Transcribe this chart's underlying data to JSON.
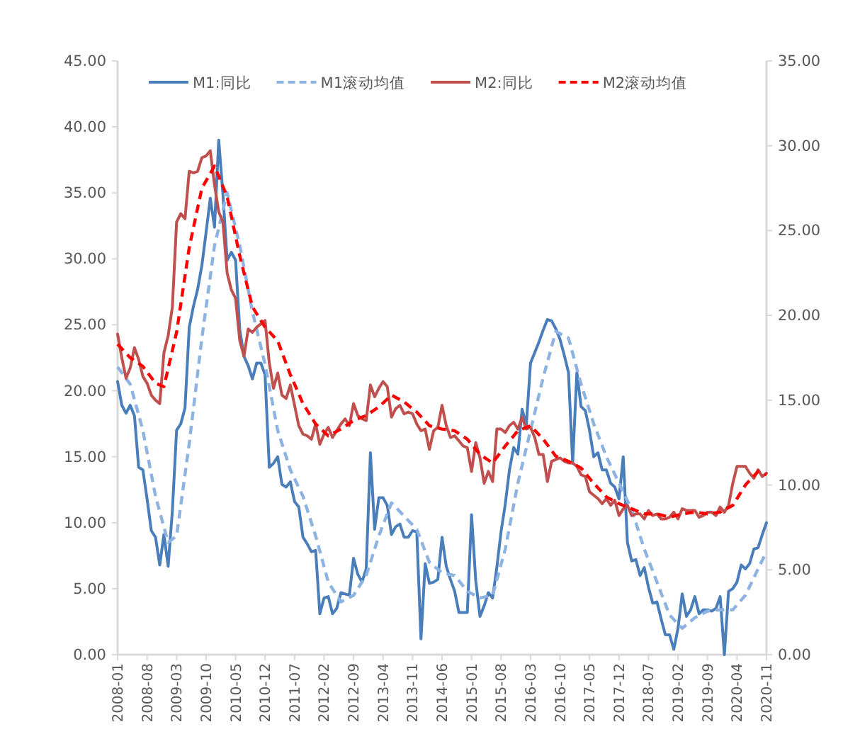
{
  "chart_data": {
    "type": "line",
    "x": [
      "2008-01",
      "2008-02",
      "2008-03",
      "2008-04",
      "2008-05",
      "2008-06",
      "2008-07",
      "2008-08",
      "2008-09",
      "2008-10",
      "2008-11",
      "2008-12",
      "2009-01",
      "2009-02",
      "2009-03",
      "2009-04",
      "2009-05",
      "2009-06",
      "2009-07",
      "2009-08",
      "2009-09",
      "2009-10",
      "2009-11",
      "2009-12",
      "2010-01",
      "2010-02",
      "2010-03",
      "2010-04",
      "2010-05",
      "2010-06",
      "2010-07",
      "2010-08",
      "2010-09",
      "2010-10",
      "2010-11",
      "2010-12",
      "2011-01",
      "2011-02",
      "2011-03",
      "2011-04",
      "2011-05",
      "2011-06",
      "2011-07",
      "2011-08",
      "2011-09",
      "2011-10",
      "2011-11",
      "2011-12",
      "2012-01",
      "2012-02",
      "2012-03",
      "2012-04",
      "2012-05",
      "2012-06",
      "2012-07",
      "2012-08",
      "2012-09",
      "2012-10",
      "2012-11",
      "2012-12",
      "2013-01",
      "2013-02",
      "2013-03",
      "2013-04",
      "2013-05",
      "2013-06",
      "2013-07",
      "2013-08",
      "2013-09",
      "2013-10",
      "2013-11",
      "2013-12",
      "2014-01",
      "2014-02",
      "2014-03",
      "2014-04",
      "2014-05",
      "2014-06",
      "2014-07",
      "2014-08",
      "2014-09",
      "2014-10",
      "2014-11",
      "2014-12",
      "2015-01",
      "2015-02",
      "2015-03",
      "2015-04",
      "2015-05",
      "2015-06",
      "2015-07",
      "2015-08",
      "2015-09",
      "2015-10",
      "2015-11",
      "2015-12",
      "2016-01",
      "2016-02",
      "2016-03",
      "2016-04",
      "2016-05",
      "2016-06",
      "2016-07",
      "2016-08",
      "2016-09",
      "2016-10",
      "2016-11",
      "2016-12",
      "2017-01",
      "2017-02",
      "2017-03",
      "2017-04",
      "2017-05",
      "2017-06",
      "2017-07",
      "2017-08",
      "2017-09",
      "2017-10",
      "2017-11",
      "2017-12",
      "2018-01",
      "2018-02",
      "2018-03",
      "2018-04",
      "2018-05",
      "2018-06",
      "2018-07",
      "2018-08",
      "2018-09",
      "2018-10",
      "2018-11",
      "2018-12",
      "2019-01",
      "2019-02",
      "2019-03",
      "2019-04",
      "2019-05",
      "2019-06",
      "2019-07",
      "2019-08",
      "2019-09",
      "2019-10",
      "2019-11",
      "2019-12",
      "2020-01",
      "2020-02",
      "2020-03",
      "2020-04",
      "2020-05",
      "2020-06",
      "2020-07",
      "2020-08",
      "2020-09",
      "2020-10",
      "2020-11"
    ],
    "xlim": [
      "2008-01",
      "2020-11"
    ],
    "xticks": [
      "2008-01",
      "2008-08",
      "2009-03",
      "2009-10",
      "2010-05",
      "2010-12",
      "2011-07",
      "2012-02",
      "2012-09",
      "2013-04",
      "2013-11",
      "2014-06",
      "2015-01",
      "2015-08",
      "2016-03",
      "2016-10",
      "2017-05",
      "2017-12",
      "2018-07",
      "2019-02",
      "2019-09",
      "2020-04",
      "2020-11"
    ],
    "ylim": [
      0,
      45
    ],
    "yticks": [
      {
        "value": 0,
        "label": "0.00"
      },
      {
        "value": 5,
        "label": "5.00"
      },
      {
        "value": 10,
        "label": "10.00"
      },
      {
        "value": 15,
        "label": "15.00"
      },
      {
        "value": 20,
        "label": "20.00"
      },
      {
        "value": 25,
        "label": "25.00"
      },
      {
        "value": 30,
        "label": "30.00"
      },
      {
        "value": 35,
        "label": "35.00"
      },
      {
        "value": 40,
        "label": "40.00"
      },
      {
        "value": 45,
        "label": "45.00"
      }
    ],
    "y2lim": [
      0,
      35
    ],
    "y2ticks": [
      {
        "value": 0,
        "label": "0.00"
      },
      {
        "value": 5,
        "label": "5.00"
      },
      {
        "value": 10,
        "label": "10.00"
      },
      {
        "value": 15,
        "label": "15.00"
      },
      {
        "value": 20,
        "label": "20.00"
      },
      {
        "value": 25,
        "label": "25.00"
      },
      {
        "value": 30,
        "label": "30.00"
      },
      {
        "value": 35,
        "label": "35.00"
      }
    ],
    "legend": "top",
    "series": [
      {
        "name": "M1:同比",
        "color": "#4a7ebb",
        "line_style": "solid",
        "values": [
          20.7,
          18.9,
          18.3,
          18.9,
          18.1,
          14.2,
          14.0,
          11.8,
          9.4,
          8.9,
          6.8,
          9.1,
          6.7,
          10.9,
          17.0,
          17.5,
          18.7,
          24.8,
          26.4,
          27.7,
          29.5,
          32.0,
          34.6,
          32.4,
          39.0,
          34.9,
          29.9,
          30.5,
          29.9,
          24.6,
          22.6,
          21.9,
          20.9,
          22.1,
          22.1,
          21.2,
          14.2,
          14.5,
          15.0,
          12.9,
          12.7,
          13.1,
          11.6,
          11.2,
          8.9,
          8.4,
          7.8,
          7.9,
          3.1,
          4.3,
          4.4,
          3.1,
          3.5,
          4.7,
          4.6,
          4.5,
          7.3,
          6.1,
          5.5,
          6.5,
          15.3,
          9.5,
          11.9,
          11.9,
          11.3,
          9.1,
          9.7,
          9.9,
          8.9,
          8.9,
          9.4,
          9.3,
          1.2,
          6.9,
          5.4,
          5.5,
          5.7,
          8.9,
          6.7,
          5.7,
          4.8,
          3.2,
          3.2,
          3.2,
          10.6,
          5.6,
          2.9,
          3.7,
          4.7,
          4.3,
          6.6,
          9.3,
          11.4,
          14.0,
          15.7,
          15.2,
          18.6,
          17.4,
          22.1,
          22.9,
          23.7,
          24.6,
          25.4,
          25.3,
          24.7,
          23.9,
          22.7,
          21.4,
          14.5,
          21.4,
          18.8,
          18.5,
          17.0,
          15.0,
          15.3,
          14.0,
          14.0,
          13.0,
          12.7,
          11.8,
          15.0,
          8.5,
          7.1,
          7.2,
          6.0,
          6.6,
          5.1,
          3.9,
          4.0,
          2.7,
          1.5,
          1.5,
          0.4,
          2.0,
          4.6,
          2.9,
          3.4,
          4.4,
          3.1,
          3.4,
          3.4,
          3.3,
          3.5,
          4.4,
          0.0,
          4.8,
          5.0,
          5.5,
          6.8,
          6.5,
          6.9,
          8.0,
          8.1,
          9.1,
          10.0
        ]
      },
      {
        "name": "M1滚动均值",
        "color": "#8db3e2",
        "line_style": "dashed",
        "x": [
          "2008-01",
          "2008-04",
          "2008-07",
          "2008-10",
          "2009-01",
          "2009-03",
          "2009-06",
          "2009-09",
          "2009-12",
          "2010-03",
          "2010-06",
          "2010-09",
          "2010-12",
          "2011-03",
          "2011-06",
          "2011-09",
          "2011-12",
          "2012-03",
          "2012-06",
          "2012-09",
          "2012-12",
          "2013-03",
          "2013-06",
          "2013-09",
          "2013-12",
          "2014-03",
          "2014-06",
          "2014-09",
          "2014-12",
          "2015-03",
          "2015-06",
          "2015-09",
          "2015-12",
          "2016-03",
          "2016-06",
          "2016-09",
          "2016-12",
          "2017-03",
          "2017-06",
          "2017-09",
          "2017-12",
          "2018-03",
          "2018-06",
          "2018-09",
          "2018-12",
          "2019-03",
          "2019-06",
          "2019-09",
          "2019-12",
          "2020-03",
          "2020-06",
          "2020-09",
          "2020-11"
        ],
        "values": [
          21.8,
          20.5,
          17,
          12,
          8.5,
          9,
          16,
          24,
          31,
          35,
          31,
          26,
          22,
          17,
          14,
          12,
          9,
          5.5,
          4,
          4.5,
          6,
          9,
          11.5,
          10.5,
          9.5,
          7,
          6.2,
          6,
          4.8,
          4.3,
          4.5,
          8,
          13,
          17,
          21,
          24.5,
          24,
          20.5,
          17.5,
          15,
          13,
          11,
          8,
          5.5,
          3,
          2,
          2.8,
          3.3,
          3.4,
          3.4,
          4.5,
          6.5,
          7.8
        ]
      },
      {
        "name": "M2:同比",
        "color": "#c0504d",
        "line_style": "solid",
        "axis": "y2",
        "values": [
          18.9,
          17.5,
          16.3,
          16.9,
          18.1,
          17.4,
          16.4,
          16.0,
          15.3,
          15.0,
          14.8,
          17.8,
          18.8,
          20.5,
          25.5,
          26.0,
          25.7,
          28.5,
          28.4,
          28.5,
          29.3,
          29.4,
          29.7,
          27.7,
          26.1,
          25.5,
          22.5,
          21.5,
          21.0,
          18.5,
          17.6,
          19.2,
          19.0,
          19.3,
          19.5,
          19.7,
          17.2,
          15.7,
          16.6,
          15.3,
          15.1,
          15.9,
          14.7,
          13.5,
          13.0,
          12.9,
          12.7,
          13.6,
          12.4,
          13.0,
          13.4,
          12.8,
          13.2,
          13.6,
          13.9,
          13.5,
          14.8,
          14.1,
          13.9,
          13.8,
          15.9,
          15.2,
          15.7,
          16.1,
          15.8,
          14.0,
          14.5,
          14.7,
          14.2,
          14.3,
          14.2,
          13.6,
          13.2,
          13.3,
          12.1,
          13.2,
          13.4,
          14.7,
          13.5,
          12.8,
          12.9,
          12.6,
          12.3,
          12.2,
          10.8,
          12.5,
          11.6,
          10.1,
          10.8,
          10.2,
          13.3,
          13.3,
          13.1,
          13.5,
          13.7,
          13.3,
          14.0,
          13.3,
          13.4,
          12.8,
          11.8,
          11.8,
          10.2,
          11.4,
          11.5,
          11.6,
          11.4,
          11.3,
          11.3,
          11.1,
          10.6,
          10.5,
          9.6,
          9.4,
          9.2,
          8.9,
          9.2,
          8.8,
          9.1,
          8.2,
          8.6,
          8.8,
          8.2,
          8.3,
          8.3,
          8.0,
          8.5,
          8.2,
          8.3,
          8.0,
          8.0,
          8.1,
          8.4,
          8.0,
          8.6,
          8.5,
          8.5,
          8.5,
          8.1,
          8.2,
          8.4,
          8.4,
          8.2,
          8.7,
          8.4,
          8.8,
          10.1,
          11.1,
          11.1,
          11.1,
          10.7,
          10.4,
          10.9,
          10.5,
          10.7
        ]
      },
      {
        "name": "M2滚动均值",
        "color": "#ff0000",
        "line_style": "dashed",
        "axis": "y2",
        "x": [
          "2008-01",
          "2008-04",
          "2008-07",
          "2008-10",
          "2008-12",
          "2009-03",
          "2009-06",
          "2009-09",
          "2009-12",
          "2010-03",
          "2010-06",
          "2010-09",
          "2010-12",
          "2011-03",
          "2011-06",
          "2011-09",
          "2011-12",
          "2012-03",
          "2012-06",
          "2012-09",
          "2012-12",
          "2013-03",
          "2013-06",
          "2013-09",
          "2013-12",
          "2014-03",
          "2014-06",
          "2014-09",
          "2014-12",
          "2015-03",
          "2015-06",
          "2015-09",
          "2015-12",
          "2016-03",
          "2016-06",
          "2016-09",
          "2016-12",
          "2017-03",
          "2017-06",
          "2017-09",
          "2017-12",
          "2018-03",
          "2018-06",
          "2018-09",
          "2018-12",
          "2019-03",
          "2019-06",
          "2019-09",
          "2019-12",
          "2020-03",
          "2020-06",
          "2020-09",
          "2020-11"
        ],
        "values": [
          18.3,
          17.5,
          17,
          16,
          15.8,
          19,
          24,
          27.5,
          28.8,
          27,
          23.5,
          20.5,
          19.3,
          18.5,
          16.5,
          14.8,
          13.6,
          12.9,
          13.3,
          13.8,
          14.1,
          14.6,
          15.3,
          14.9,
          14.3,
          13.5,
          13.3,
          13.2,
          12.7,
          11.8,
          11.3,
          12.3,
          13.2,
          13.5,
          12.7,
          11.7,
          11.4,
          11.0,
          10.1,
          9.3,
          8.9,
          8.6,
          8.3,
          8.3,
          8.1,
          8.3,
          8.4,
          8.3,
          8.4,
          8.8,
          10.0,
          10.8,
          10.6
        ]
      }
    ]
  }
}
